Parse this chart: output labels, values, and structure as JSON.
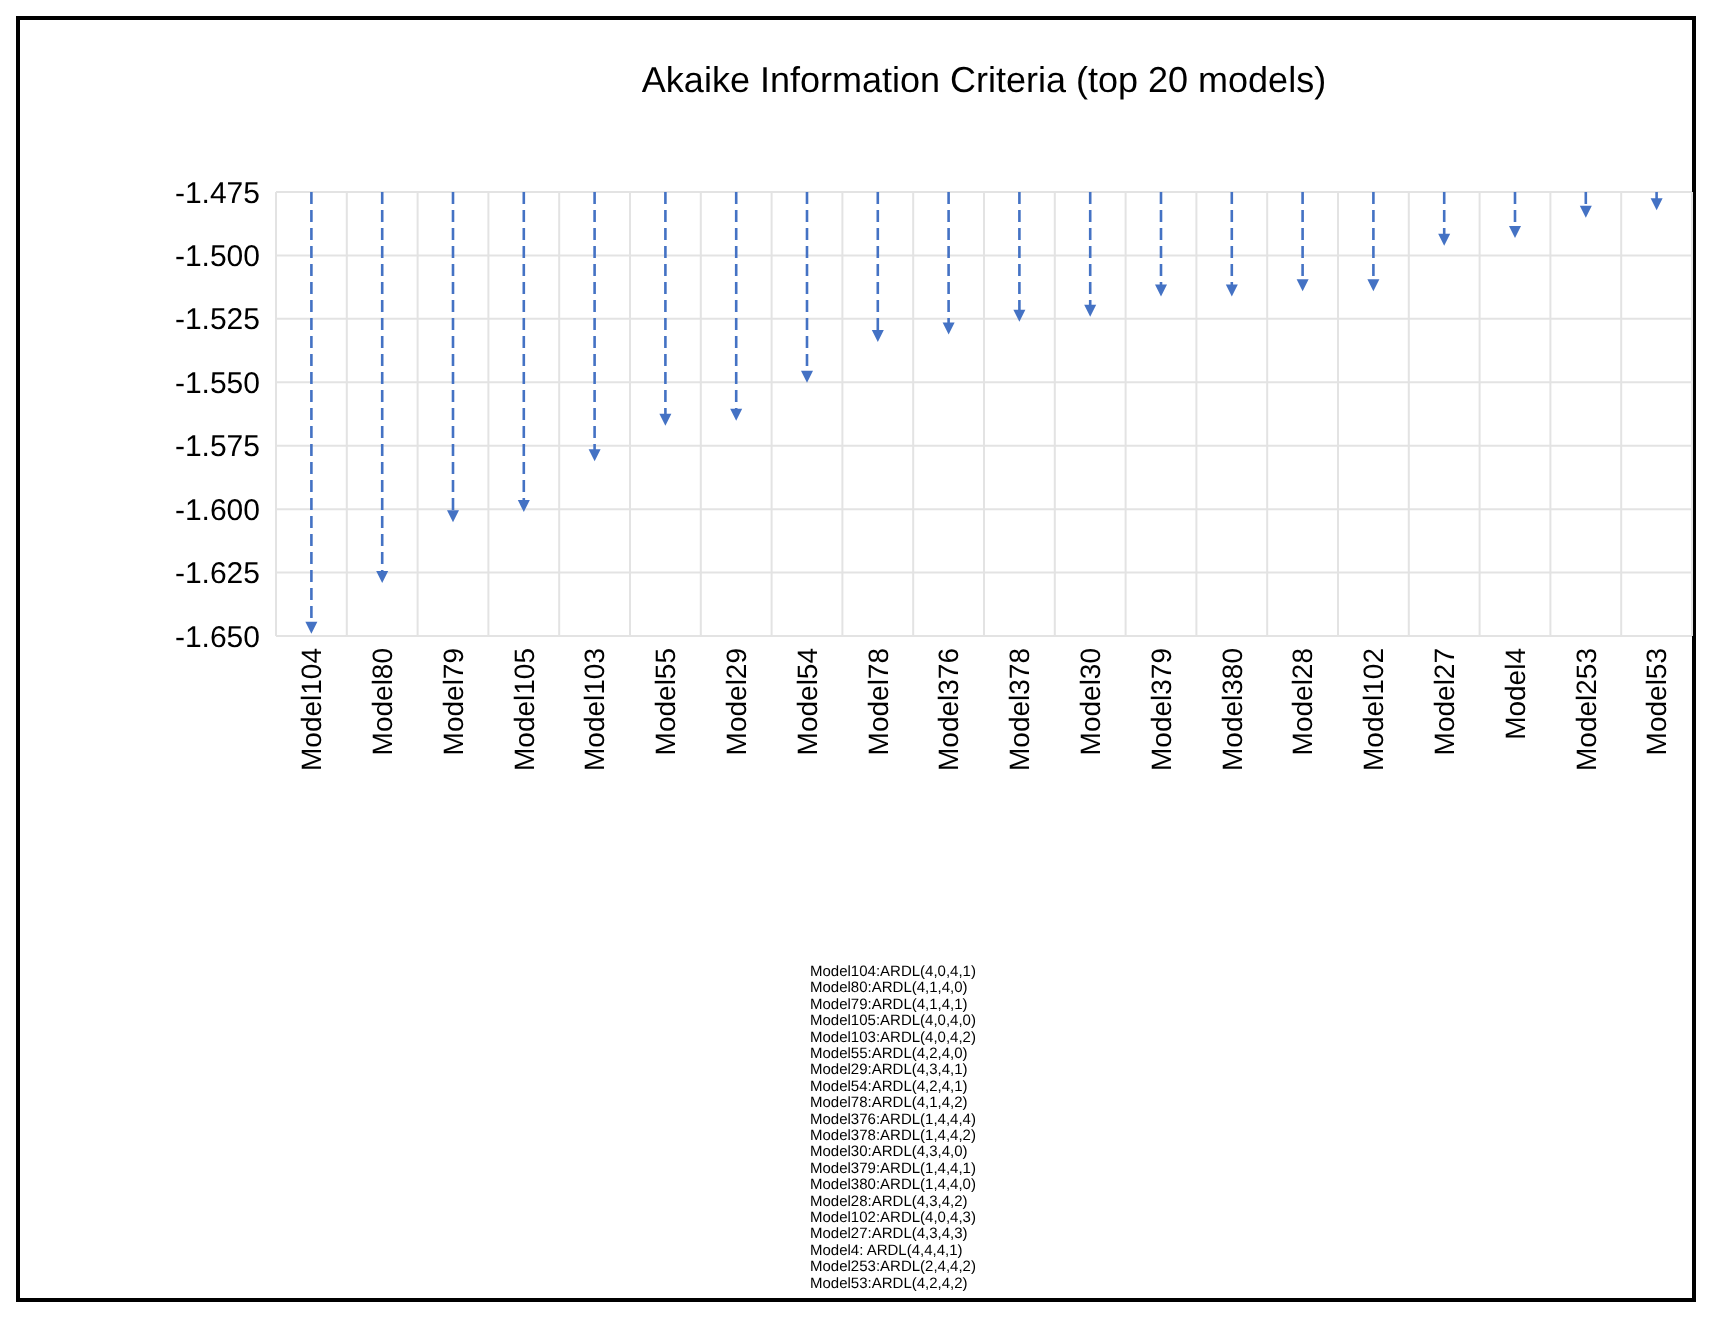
{
  "chart_data": {
    "type": "lollipop",
    "title": "Akaike Information Criteria (top 20 models)",
    "categories": [
      "Model104",
      "Model80",
      "Model79",
      "Model105",
      "Model103",
      "Model55",
      "Model29",
      "Model54",
      "Model78",
      "Model376",
      "Model378",
      "Model30",
      "Model379",
      "Model380",
      "Model28",
      "Model102",
      "Model27",
      "Model4",
      "Model253",
      "Model53"
    ],
    "values": [
      -1.646,
      -1.626,
      -1.602,
      -1.598,
      -1.578,
      -1.564,
      -1.562,
      -1.547,
      -1.531,
      -1.528,
      -1.523,
      -1.521,
      -1.513,
      -1.513,
      -1.511,
      -1.511,
      -1.493,
      -1.49,
      -1.482,
      -1.479
    ],
    "color": "#4472c4",
    "ylim": [
      -1.65,
      -1.475
    ],
    "yticks": [
      {
        "value": -1.65,
        "label": "-1.650"
      },
      {
        "value": -1.625,
        "label": "-1.625"
      },
      {
        "value": -1.6,
        "label": "-1.600"
      },
      {
        "value": -1.575,
        "label": "-1.575"
      },
      {
        "value": -1.55,
        "label": "-1.550"
      },
      {
        "value": -1.525,
        "label": "-1.525"
      },
      {
        "value": -1.5,
        "label": "-1.500"
      },
      {
        "value": -1.475,
        "label": "-1.475"
      }
    ],
    "grid": true,
    "marker": "triangle",
    "line_style": "dashed",
    "annotations": [
      "Model104:ARDL(4,0,4,1)",
      "Model80:ARDL(4,1,4,0)",
      "Model79:ARDL(4,1,4,1)",
      "Model105:ARDL(4,0,4,0)",
      "Model103:ARDL(4,0,4,2)",
      "Model55:ARDL(4,2,4,0)",
      "Model29:ARDL(4,3,4,1)",
      "Model54:ARDL(4,2,4,1)",
      "Model78:ARDL(4,1,4,2)",
      "Model376:ARDL(1,4,4,4)",
      "Model378:ARDL(1,4,4,2)",
      "Model30:ARDL(4,3,4,0)",
      "Model379:ARDL(1,4,4,1)",
      "Model380:ARDL(1,4,4,0)",
      "Model28:ARDL(4,3,4,2)",
      "Model102:ARDL(4,0,4,3)",
      "Model27:ARDL(4,3,4,3)",
      "Model4: ARDL(4,4,4,1)",
      "Model253:ARDL(2,4,4,2)",
      "Model53:ARDL(4,2,4,2)"
    ]
  }
}
